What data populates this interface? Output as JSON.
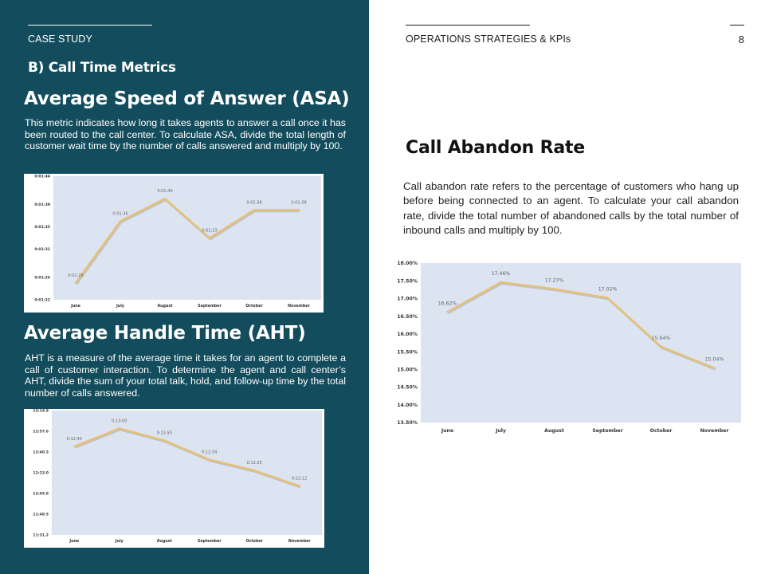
{
  "header": {
    "left_kicker": "CASE STUDY",
    "right_kicker": "OPERATIONS STRATEGIES & KPIs",
    "page_number": "8"
  },
  "left": {
    "section_label": "B) Call Time Metrics",
    "asa": {
      "title": "Average Speed of Answer (ASA)",
      "body": "This metric indicates how long it takes agents to answer a call once it has been routed to the call center. To calculate ASA, divide the total length of customer wait time by the number of calls answered and multiply by 100."
    },
    "aht": {
      "title": "Average Handle Time (AHT)",
      "body": "AHT is a measure of the average time it takes for an agent to complete a call of customer interaction. To determine the agent and call center’s AHT, divide the sum of your total talk, hold, and follow-up time by the total number of calls answered."
    }
  },
  "right": {
    "car": {
      "title": "Call Abandon Rate",
      "body": "Call abandon rate refers to the percentage of customers who hang up before being connected to an agent. To calculate your call abandon rate, divide the total number of abandoned calls by the total number of inbound calls and multiply by 100."
    }
  },
  "colors": {
    "panel": "#134c5c",
    "plot_bg": "#dce3f1",
    "line": "#e8c070",
    "line_shadow": "#9a9a9a"
  },
  "chart_data": [
    {
      "id": "asa",
      "type": "line",
      "categories": [
        "June",
        "July",
        "August",
        "September",
        "October",
        "November"
      ],
      "values": [
        85,
        96,
        100,
        93,
        98,
        98
      ],
      "data_labels": [
        "0:01:25",
        "0:01:36",
        "0:01:40",
        "0:01:33",
        "0:01:38",
        "0:01:38"
      ],
      "y_ticks": [
        82,
        86,
        91,
        95,
        99,
        104
      ],
      "y_tick_labels": [
        "0:01:22",
        "0:01:26",
        "0:01:31",
        "0:01:35",
        "0:01:39",
        "0:01:44"
      ],
      "ylim": [
        82,
        104
      ],
      "grid": false,
      "legend": "none"
    },
    {
      "id": "aht",
      "type": "line",
      "categories": [
        "June",
        "July",
        "August",
        "September",
        "October",
        "November"
      ],
      "values": [
        765,
        780,
        770,
        754,
        745,
        732
      ],
      "data_labels": [
        "0:12:45",
        "0:13:00",
        "0:12:50",
        "0:12:34",
        "0:12:25",
        "0:12:12"
      ],
      "y_ticks": [
        691.2,
        708.5,
        725.8,
        743.0,
        760.3,
        777.6,
        794.9
      ],
      "y_tick_labels": [
        "11:31.2",
        "11:48.5",
        "12:05.8",
        "12:23.0",
        "12:40.3",
        "12:57.6",
        "13:14.9"
      ],
      "ylim": [
        691.2,
        794.9
      ],
      "grid": false,
      "legend": "none"
    },
    {
      "id": "car",
      "type": "line",
      "categories": [
        "June",
        "July",
        "August",
        "September",
        "October",
        "November"
      ],
      "values": [
        16.62,
        17.46,
        17.27,
        17.02,
        15.64,
        15.04
      ],
      "data_labels": [
        "16.62%",
        "17.46%",
        "17.27%",
        "17.02%",
        "15.64%",
        "15.04%"
      ],
      "y_ticks": [
        13.5,
        14.0,
        14.5,
        15.0,
        15.5,
        16.0,
        16.5,
        17.0,
        17.5,
        18.0
      ],
      "y_tick_labels": [
        "13.50%",
        "14.00%",
        "14.50%",
        "15.00%",
        "15.50%",
        "16.00%",
        "16.50%",
        "17.00%",
        "17.50%",
        "18.00%"
      ],
      "ylim": [
        13.5,
        18.0
      ],
      "grid": false,
      "legend": "none"
    }
  ]
}
